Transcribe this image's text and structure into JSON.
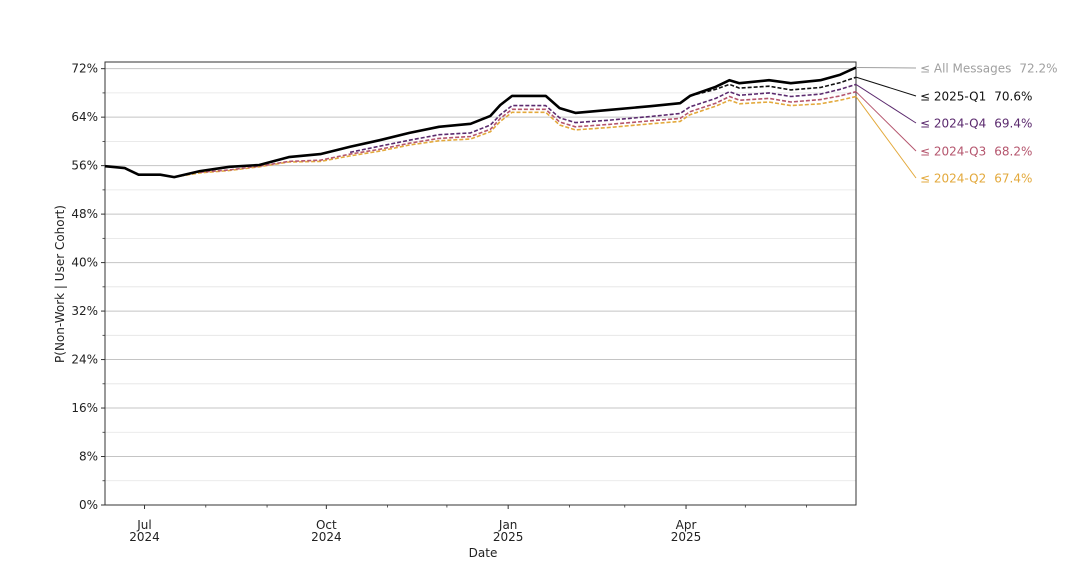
{
  "chart_data": {
    "type": "line",
    "x_label": "Date",
    "y_label": "P(Non-Work | User Cohort)",
    "xlim": [
      "2024-06-11",
      "2025-06-26"
    ],
    "xticks": [
      {
        "value": "2024-07-01",
        "label": "Jul\n2024"
      },
      {
        "value": "2024-10-01",
        "label": "Oct\n2024"
      },
      {
        "value": "2025-01-01",
        "label": "Jan\n2025"
      },
      {
        "value": "2025-04-01",
        "label": "Apr\n2025"
      }
    ],
    "xminorticks": [
      "2024-08-01",
      "2024-09-01",
      "2024-11-01",
      "2024-12-01",
      "2025-02-01",
      "2025-03-01",
      "2025-05-01",
      "2025-06-01"
    ],
    "ylim": [
      0,
      73.1
    ],
    "yticks": [
      {
        "value": 0,
        "label": "0%"
      },
      {
        "value": 8,
        "label": "8%"
      },
      {
        "value": 16,
        "label": "16%"
      },
      {
        "value": 24,
        "label": "24%"
      },
      {
        "value": 32,
        "label": "32%"
      },
      {
        "value": 40,
        "label": "40%"
      },
      {
        "value": 48,
        "label": "48%"
      },
      {
        "value": 56,
        "label": "56%"
      },
      {
        "value": 64,
        "label": "64%"
      },
      {
        "value": 72,
        "label": "72%"
      }
    ],
    "yminorticks": [
      4,
      12,
      20,
      28,
      36,
      44,
      52,
      60,
      68
    ],
    "grid": true,
    "x": [
      "2024-06-11",
      "2024-06-21",
      "2024-06-28",
      "2024-07-09",
      "2024-07-16",
      "2024-07-29",
      "2024-08-13",
      "2024-08-28",
      "2024-09-12",
      "2024-09-28",
      "2024-10-13",
      "2024-10-28",
      "2024-11-12",
      "2024-11-27",
      "2024-12-13",
      "2024-12-23",
      "2024-12-28",
      "2025-01-03",
      "2025-01-20",
      "2025-01-27",
      "2025-02-04",
      "2025-02-21",
      "2025-03-14",
      "2025-03-29",
      "2025-04-03",
      "2025-04-16",
      "2025-04-23",
      "2025-04-28",
      "2025-05-13",
      "2025-05-24",
      "2025-06-08",
      "2025-06-18",
      "2025-06-26"
    ],
    "series": [
      {
        "name": "≤ All Messages",
        "color": "#000000",
        "label_color": "#a0a0a0",
        "dash": "solid",
        "values": [
          55.9,
          55.6,
          54.5,
          54.5,
          54.1,
          55.1,
          55.8,
          56.1,
          57.4,
          57.9,
          59.1,
          60.2,
          61.4,
          62.4,
          62.9,
          64.2,
          66.0,
          67.5,
          67.5,
          65.5,
          64.7,
          65.2,
          65.8,
          66.3,
          67.5,
          69.0,
          70.1,
          69.6,
          70.1,
          69.6,
          70.1,
          71.0,
          72.2
        ],
        "value_labels": [
          null,
          null,
          null,
          null,
          null,
          null,
          null,
          null,
          null,
          null,
          null,
          null,
          null,
          null,
          null,
          null,
          null,
          null,
          null,
          null,
          null,
          null,
          null,
          null,
          null,
          null,
          null,
          null,
          null,
          null,
          null,
          null,
          "72.2%"
        ]
      },
      {
        "name": "≤ 2025-Q1",
        "color": "#111111",
        "label_color": "#111111",
        "dash": "dashed",
        "values": [
          null,
          null,
          null,
          null,
          null,
          null,
          null,
          null,
          null,
          null,
          null,
          null,
          null,
          null,
          null,
          null,
          null,
          null,
          null,
          null,
          null,
          null,
          null,
          null,
          67.5,
          68.6,
          69.4,
          68.8,
          69.1,
          68.5,
          68.9,
          69.7,
          70.6
        ],
        "value_labels": [
          null,
          null,
          null,
          null,
          null,
          null,
          null,
          null,
          null,
          null,
          null,
          null,
          null,
          null,
          null,
          null,
          null,
          null,
          null,
          null,
          null,
          null,
          null,
          null,
          null,
          null,
          null,
          null,
          null,
          null,
          null,
          null,
          "70.6%"
        ]
      },
      {
        "name": "≤ 2024-Q4",
        "color": "#5b2a6e",
        "label_color": "#5b2a6e",
        "dash": "dashed",
        "values": [
          null,
          null,
          null,
          null,
          null,
          null,
          null,
          null,
          null,
          null,
          58.2,
          59.2,
          60.2,
          61.1,
          61.4,
          62.7,
          64.4,
          65.9,
          65.9,
          63.9,
          63.1,
          63.5,
          64.1,
          64.6,
          65.7,
          67.1,
          68.2,
          67.6,
          68.0,
          67.4,
          67.8,
          68.6,
          69.4
        ],
        "value_labels": [
          null,
          null,
          null,
          null,
          null,
          null,
          null,
          null,
          null,
          null,
          null,
          null,
          null,
          null,
          null,
          null,
          null,
          null,
          null,
          null,
          null,
          null,
          null,
          null,
          null,
          null,
          null,
          null,
          null,
          null,
          null,
          null,
          "69.4%"
        ]
      },
      {
        "name": "≤ 2024-Q3",
        "color": "#b5566e",
        "label_color": "#b5566e",
        "dash": "dashed",
        "values": [
          null,
          null,
          null,
          null,
          null,
          54.9,
          55.3,
          55.9,
          56.7,
          56.9,
          57.9,
          58.7,
          59.7,
          60.5,
          60.8,
          62.0,
          63.8,
          65.3,
          65.3,
          63.2,
          62.4,
          62.8,
          63.4,
          63.8,
          64.9,
          66.3,
          67.4,
          66.8,
          67.1,
          66.5,
          66.9,
          67.5,
          68.2
        ],
        "value_labels": [
          null,
          null,
          null,
          null,
          null,
          null,
          null,
          null,
          null,
          null,
          null,
          null,
          null,
          null,
          null,
          null,
          null,
          null,
          null,
          null,
          null,
          null,
          null,
          null,
          null,
          null,
          null,
          null,
          null,
          null,
          null,
          null,
          "68.2%"
        ]
      },
      {
        "name": "≤ 2024-Q2",
        "color": "#e3a93c",
        "label_color": "#e3a93c",
        "dash": "dashed",
        "values": [
          null,
          null,
          null,
          null,
          54.1,
          54.8,
          55.2,
          55.8,
          56.6,
          56.7,
          57.6,
          58.4,
          59.4,
          60.1,
          60.4,
          61.6,
          63.3,
          64.8,
          64.8,
          62.7,
          61.9,
          62.3,
          62.9,
          63.3,
          64.4,
          65.8,
          66.8,
          66.2,
          66.5,
          65.9,
          66.2,
          66.8,
          67.4
        ],
        "value_labels": [
          null,
          null,
          null,
          null,
          null,
          null,
          null,
          null,
          null,
          null,
          null,
          null,
          null,
          null,
          null,
          null,
          null,
          null,
          null,
          null,
          null,
          null,
          null,
          null,
          null,
          null,
          null,
          null,
          null,
          null,
          null,
          null,
          "67.4%"
        ]
      }
    ]
  }
}
